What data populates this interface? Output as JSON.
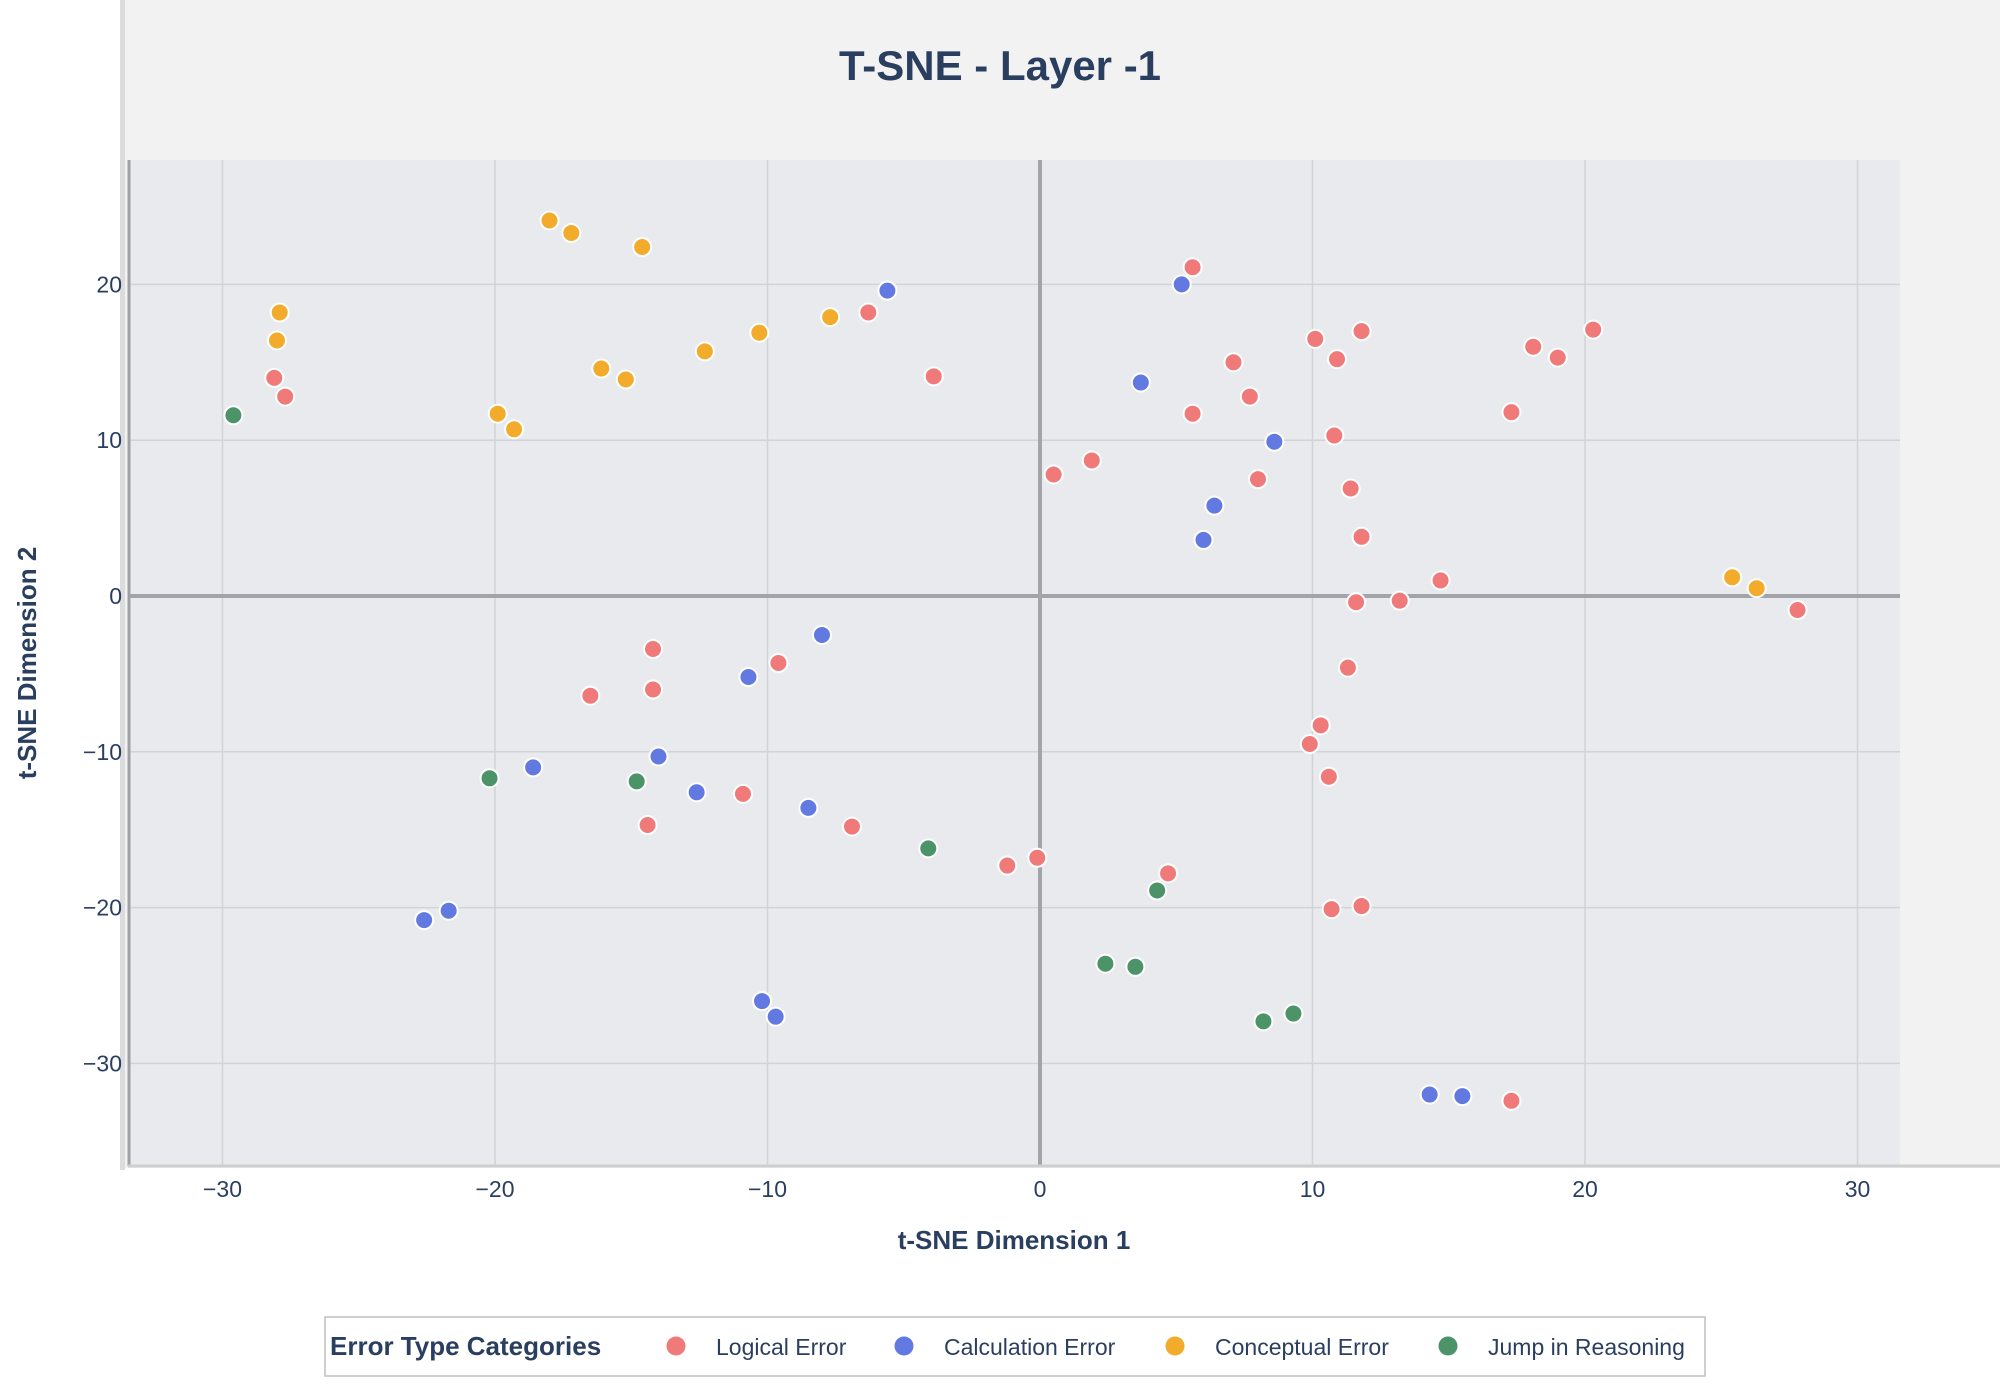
{
  "chart_data": {
    "type": "scatter",
    "title": "T-SNE - Layer -1",
    "xlabel": "t-SNE Dimension 1",
    "ylabel": "t-SNE Dimension 2",
    "xlim": [
      -33.5,
      31.5
    ],
    "ylim": [
      -36.5,
      28
    ],
    "xticks": [
      -30,
      -20,
      -10,
      0,
      10,
      20,
      30
    ],
    "xtick_labels": [
      "−30",
      "−20",
      "−10",
      "0",
      "10",
      "20",
      "30"
    ],
    "yticks": [
      -30,
      -20,
      -10,
      0,
      10,
      20
    ],
    "ytick_labels": [
      "−30",
      "−20",
      "−10",
      "0",
      "10",
      "20"
    ],
    "grid": true,
    "zero_lines": true,
    "legend": {
      "title": "Error Type Categories",
      "placement": "bottom-center",
      "orientation": "horizontal"
    },
    "series": [
      {
        "name": "Logical Error",
        "color": "#f07a7a",
        "x": [
          -28.1,
          -27.7,
          -6.3,
          -3.9,
          0.5,
          1.9,
          5.6,
          5.6,
          7.1,
          7.7,
          8.0,
          10.1,
          11.8,
          10.9,
          10.8,
          11.4,
          11.8,
          11.6,
          13.2,
          14.7,
          17.3,
          18.1,
          19.0,
          20.3,
          27.8,
          -16.5,
          -14.2,
          -14.2,
          -9.6,
          -10.9,
          -14.4,
          -6.9,
          -1.2,
          -0.1,
          4.7,
          11.3,
          10.3,
          9.9,
          10.6,
          10.7,
          11.8,
          17.3
        ],
        "y": [
          14.0,
          12.8,
          18.2,
          14.1,
          7.8,
          8.7,
          21.1,
          11.7,
          15.0,
          12.8,
          7.5,
          16.5,
          17.0,
          15.2,
          10.3,
          6.9,
          3.8,
          -0.4,
          -0.3,
          1.0,
          11.8,
          16.0,
          15.3,
          17.1,
          -0.9,
          -6.4,
          -3.4,
          -6.0,
          -4.3,
          -12.7,
          -14.7,
          -14.8,
          -17.3,
          -16.8,
          -17.8,
          -4.6,
          -8.3,
          -9.5,
          -11.6,
          -20.1,
          -19.9,
          -32.4
        ]
      },
      {
        "name": "Calculation Error",
        "color": "#6179e0",
        "x": [
          -5.6,
          5.2,
          3.7,
          8.6,
          6.4,
          6.0,
          -8.0,
          -10.7,
          -18.6,
          -14.0,
          -12.6,
          -8.5,
          -22.6,
          -21.7,
          -10.2,
          -9.7,
          14.3,
          15.5
        ],
        "y": [
          19.6,
          20.0,
          13.7,
          9.9,
          5.8,
          3.6,
          -2.5,
          -5.2,
          -11.0,
          -10.3,
          -12.6,
          -13.6,
          -20.8,
          -20.2,
          -26.0,
          -27.0,
          -32.0,
          -32.1
        ]
      },
      {
        "name": "Conceptual Error",
        "color": "#f2ab2a",
        "x": [
          -18.0,
          -17.2,
          -14.6,
          -27.9,
          -28.0,
          -16.1,
          -15.2,
          -12.3,
          -10.3,
          -7.7,
          -19.9,
          -19.3,
          25.4,
          26.3
        ],
        "y": [
          24.1,
          23.3,
          22.4,
          18.2,
          16.4,
          14.6,
          13.9,
          15.7,
          16.9,
          17.9,
          11.7,
          10.7,
          1.2,
          0.5
        ]
      },
      {
        "name": "Jump in Reasoning",
        "color": "#4d9368",
        "x": [
          -29.6,
          -20.2,
          -14.8,
          -4.1,
          4.3,
          2.4,
          3.5,
          8.2,
          9.3
        ],
        "y": [
          11.6,
          -11.7,
          -11.9,
          -16.2,
          -18.9,
          -23.6,
          -23.8,
          -27.3,
          -26.8
        ]
      }
    ]
  }
}
